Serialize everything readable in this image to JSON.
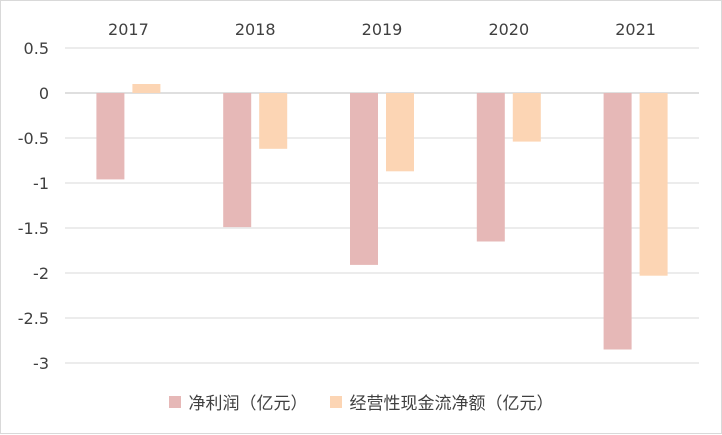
{
  "chart_data": {
    "type": "bar",
    "categories": [
      "2017",
      "2018",
      "2019",
      "2020",
      "2021"
    ],
    "series": [
      {
        "name": "净利润（亿元）",
        "values": [
          -0.96,
          -1.49,
          -1.91,
          -1.65,
          -2.85
        ],
        "color": "#e6b8b7"
      },
      {
        "name": "经营性现金流净额（亿元）",
        "values": [
          0.1,
          -0.62,
          -0.87,
          -0.54,
          -2.03
        ],
        "color": "#fcd5b4"
      }
    ],
    "title": "",
    "xlabel": "",
    "ylabel": "",
    "ylim": [
      -3,
      0.5
    ],
    "yticks": [
      "0.5",
      "0",
      "-0.5",
      "-1",
      "-1.5",
      "-2",
      "-2.5",
      "-3"
    ],
    "x_axis_position": "top",
    "grid": true,
    "legend_position": "bottom"
  }
}
